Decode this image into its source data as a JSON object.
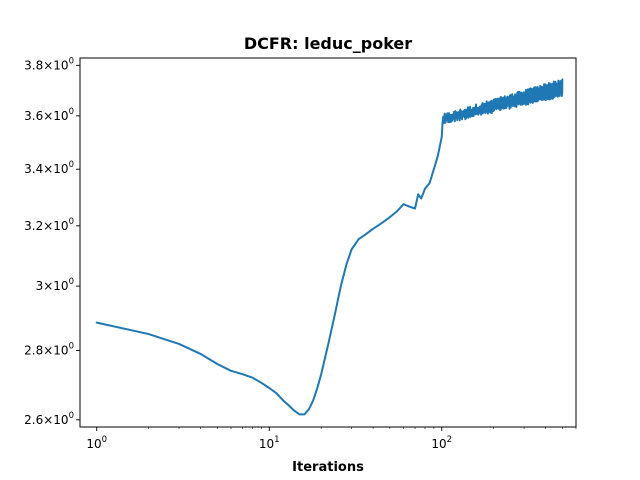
{
  "chart_data": {
    "type": "line",
    "title": "DCFR: leduc_poker",
    "xlabel": "Iterations",
    "ylabel": "",
    "xscale": "log",
    "yscale": "log",
    "xlim": [
      0.8,
      600
    ],
    "ylim": [
      2.58,
      3.83
    ],
    "grid": false,
    "legend": "none",
    "x_ticks": [
      {
        "value": 1,
        "base": "10",
        "exp": "0"
      },
      {
        "value": 10,
        "base": "10",
        "exp": "1"
      },
      {
        "value": 100,
        "base": "10",
        "exp": "2"
      }
    ],
    "y_ticks": [
      {
        "value": 2.6,
        "mantissa": "2.6",
        "exp": "0"
      },
      {
        "value": 2.8,
        "mantissa": "2.8",
        "exp": "0"
      },
      {
        "value": 3.0,
        "mantissa": "3",
        "exp": "0"
      },
      {
        "value": 3.2,
        "mantissa": "3.2",
        "exp": "0"
      },
      {
        "value": 3.4,
        "mantissa": "3.4",
        "exp": "0"
      },
      {
        "value": 3.6,
        "mantissa": "3.6",
        "exp": "0"
      },
      {
        "value": 3.8,
        "mantissa": "3.8",
        "exp": "0"
      }
    ],
    "series": [
      {
        "color": "#1f77b4",
        "x": [
          1,
          2,
          3,
          4,
          5,
          6,
          7,
          8,
          9,
          10,
          11,
          12,
          13,
          14,
          15,
          16,
          17,
          18,
          19,
          20,
          22,
          24,
          26,
          28,
          30,
          33,
          36,
          40,
          45,
          50,
          55,
          60,
          63,
          66,
          70,
          73,
          76,
          80,
          85,
          90,
          95,
          100
        ],
        "y": [
          2.885,
          2.85,
          2.82,
          2.79,
          2.76,
          2.74,
          2.73,
          2.72,
          2.705,
          2.69,
          2.675,
          2.655,
          2.64,
          2.625,
          2.615,
          2.615,
          2.63,
          2.655,
          2.69,
          2.73,
          2.82,
          2.91,
          3.0,
          3.07,
          3.12,
          3.155,
          3.17,
          3.19,
          3.21,
          3.23,
          3.25,
          3.275,
          3.27,
          3.265,
          3.26,
          3.31,
          3.295,
          3.33,
          3.35,
          3.4,
          3.45,
          3.52
        ],
        "noisy_segment": {
          "x_range": [
            100,
            500
          ],
          "trend_start": 3.585,
          "trend_end": 3.71,
          "band_start": 0.02,
          "band_end": 0.035
        }
      }
    ]
  }
}
